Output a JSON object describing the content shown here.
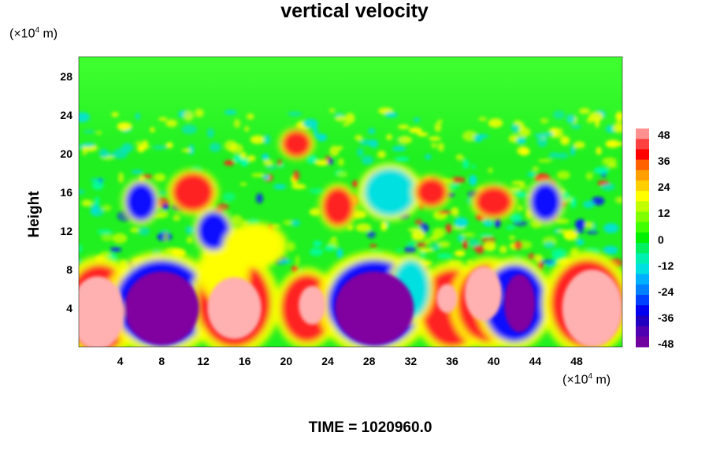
{
  "chart_data": {
    "type": "heatmap",
    "title": "vertical velocity",
    "xlabel": "",
    "ylabel": "Height",
    "x_unit": "(×10⁴ m)",
    "y_unit": "(×10⁴ m)",
    "x_unit_base": "(×10",
    "x_unit_exp": "4",
    "x_unit_tail": " m)",
    "xlim": [
      0,
      52.4
    ],
    "ylim": [
      0,
      30
    ],
    "x_ticks": [
      "4",
      "8",
      "12",
      "16",
      "20",
      "24",
      "28",
      "32",
      "36",
      "40",
      "44",
      "48"
    ],
    "y_ticks": [
      "4",
      "8",
      "12",
      "16",
      "20",
      "24",
      "28"
    ],
    "colorbar": {
      "ticks": [
        "48",
        "36",
        "24",
        "12",
        "0",
        "-12",
        "-24",
        "-36",
        "-48"
      ],
      "range": [
        -48,
        48
      ]
    },
    "time_label": "TIME = 1020960.0"
  },
  "colors": {
    "strong_up": "#ffb0b0",
    "up": "#ff2020",
    "weak_up": "#ffff00",
    "neutral": "#20f020",
    "weak_down": "#00e0e0",
    "down": "#1010ff",
    "strong_down": "#8000a0"
  }
}
